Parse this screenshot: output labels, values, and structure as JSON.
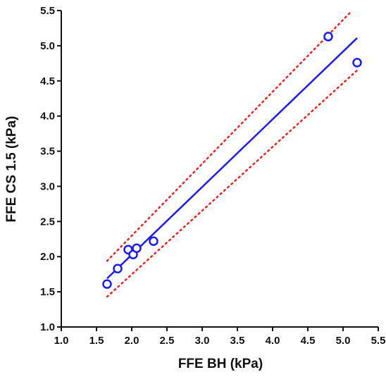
{
  "chart_data": {
    "type": "scatter",
    "title": "",
    "xlabel": "FFE BH (kPa)",
    "ylabel": "FFE CS 1.5 (kPa)",
    "xlim": [
      1.0,
      5.5
    ],
    "ylim": [
      1.0,
      5.5
    ],
    "xticks": [
      "1.0",
      "1.5",
      "2.0",
      "2.5",
      "3.0",
      "3.5",
      "4.0",
      "4.5",
      "5.0",
      "5.5"
    ],
    "yticks": [
      "1.0",
      "1.5",
      "2.0",
      "2.5",
      "3.0",
      "3.5",
      "4.0",
      "4.5",
      "5.0",
      "5.5"
    ],
    "grid": false,
    "legend": "none",
    "points": [
      {
        "x": 1.65,
        "y": 1.61
      },
      {
        "x": 1.8,
        "y": 1.83
      },
      {
        "x": 1.95,
        "y": 2.1
      },
      {
        "x": 2.02,
        "y": 2.03
      },
      {
        "x": 2.07,
        "y": 2.12
      },
      {
        "x": 2.31,
        "y": 2.22
      },
      {
        "x": 4.79,
        "y": 5.13
      },
      {
        "x": 5.2,
        "y": 4.76
      }
    ],
    "regression_line": {
      "x": [
        1.65,
        5.2
      ],
      "y": [
        1.69,
        5.11
      ]
    },
    "prediction_band_upper": {
      "x": [
        1.65,
        5.1
      ],
      "y": [
        1.94,
        5.47
      ]
    },
    "prediction_band_lower": {
      "x": [
        1.65,
        5.2
      ],
      "y": [
        1.43,
        4.65
      ]
    },
    "colors": {
      "points": "#1a1aff",
      "fit_line": "#1a1aff",
      "band": "#e8231e",
      "axis": "#111111"
    }
  }
}
